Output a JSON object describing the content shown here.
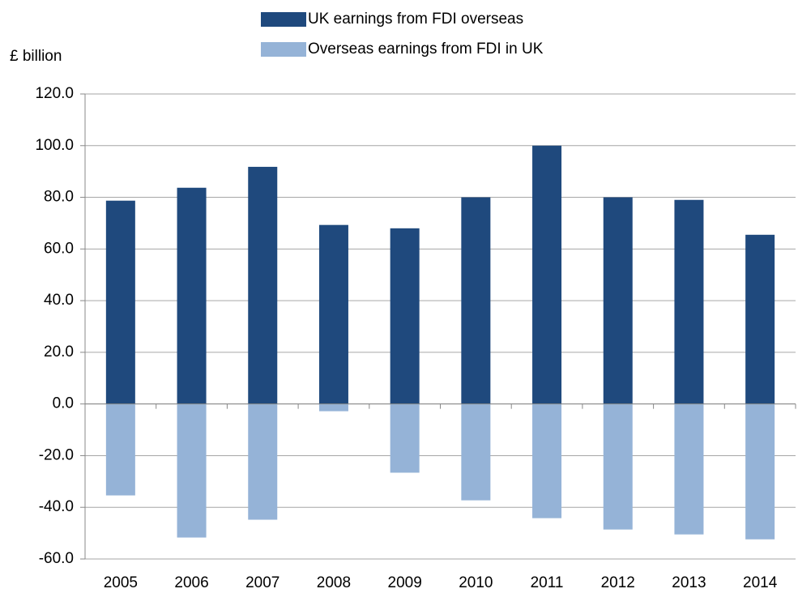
{
  "chart_data": {
    "type": "bar",
    "y_axis_label": "£ billion",
    "categories": [
      "2005",
      "2006",
      "2007",
      "2008",
      "2009",
      "2010",
      "2011",
      "2012",
      "2013",
      "2014"
    ],
    "series": [
      {
        "name": "UK earnings  from FDI overseas",
        "color": "#1f497d",
        "values": [
          78.7,
          83.7,
          91.8,
          69.3,
          68.0,
          80.0,
          100.0,
          80.0,
          79.0,
          65.5
        ]
      },
      {
        "name": "Overseas earnings  from FDI in UK",
        "color": "#95b3d7",
        "values": [
          -35.4,
          -51.7,
          -44.8,
          -2.8,
          -26.6,
          -37.3,
          -44.2,
          -48.6,
          -50.5,
          -52.4
        ]
      }
    ],
    "ylim": [
      -60,
      120
    ],
    "yticks": [
      {
        "value": -60,
        "label": "-60.0"
      },
      {
        "value": -40,
        "label": "-40.0"
      },
      {
        "value": -20,
        "label": "-20.0"
      },
      {
        "value": 0,
        "label": "0.0"
      },
      {
        "value": 20,
        "label": "20.0"
      },
      {
        "value": 40,
        "label": "40.0"
      },
      {
        "value": 60,
        "label": "60.0"
      },
      {
        "value": 80,
        "label": "80.0"
      },
      {
        "value": 100,
        "label": "100.0"
      },
      {
        "value": 120,
        "label": "120.0"
      }
    ],
    "grid": true,
    "legend": "top"
  }
}
